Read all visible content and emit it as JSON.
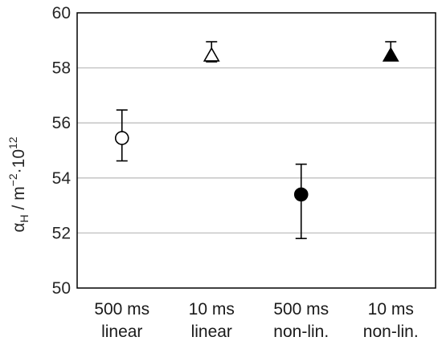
{
  "chart_data": {
    "type": "scatter",
    "categories": [
      [
        "500 ms",
        "linear"
      ],
      [
        "10 ms",
        "linear"
      ],
      [
        "500 ms",
        "non-lin."
      ],
      [
        "10 ms",
        "non-lin."
      ]
    ],
    "points": [
      {
        "value": 55.45,
        "err_low": 54.62,
        "err_high": 56.47,
        "marker": "circle",
        "filled": false
      },
      {
        "value": 58.45,
        "err_low": 58.22,
        "err_high": 58.95,
        "marker": "triangle",
        "filled": false
      },
      {
        "value": 53.4,
        "err_low": 51.8,
        "err_high": 54.5,
        "marker": "circle",
        "filled": true
      },
      {
        "value": 58.45,
        "err_low": 58.3,
        "err_high": 58.95,
        "marker": "triangle",
        "filled": true
      }
    ],
    "ylim": [
      50,
      60
    ],
    "yticks": [
      "50",
      "52",
      "54",
      "56",
      "58",
      "60"
    ],
    "ylabel": {
      "main": "α",
      "sub": "H",
      "mid": " / m",
      "sup1": "−2",
      "dot": "·10",
      "sup2": "12"
    },
    "grid": true,
    "colors": {
      "marker": "#000000",
      "grid": "#bfbfbf",
      "axis": "#000000"
    }
  }
}
